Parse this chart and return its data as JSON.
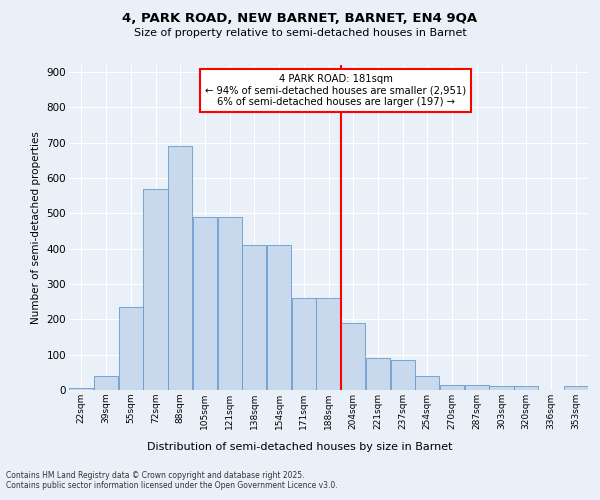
{
  "title1": "4, PARK ROAD, NEW BARNET, BARNET, EN4 9QA",
  "title2": "Size of property relative to semi-detached houses in Barnet",
  "xlabel": "Distribution of semi-detached houses by size in Barnet",
  "ylabel": "Number of semi-detached properties",
  "bin_labels": [
    "22sqm",
    "39sqm",
    "55sqm",
    "72sqm",
    "88sqm",
    "105sqm",
    "121sqm",
    "138sqm",
    "154sqm",
    "171sqm",
    "188sqm",
    "204sqm",
    "221sqm",
    "237sqm",
    "254sqm",
    "270sqm",
    "287sqm",
    "303sqm",
    "320sqm",
    "336sqm",
    "353sqm"
  ],
  "bar_heights": [
    5,
    40,
    235,
    570,
    690,
    490,
    490,
    410,
    410,
    260,
    260,
    190,
    90,
    85,
    40,
    15,
    15,
    10,
    10,
    0,
    10
  ],
  "bar_color": "#c9d9ed",
  "bar_edge_color": "#6699cc",
  "vline_x": 10.5,
  "vline_color": "red",
  "annotation_text": "4 PARK ROAD: 181sqm\n← 94% of semi-detached houses are smaller (2,951)\n6% of semi-detached houses are larger (197) →",
  "annotation_box_color": "white",
  "annotation_box_edge": "red",
  "footer": "Contains HM Land Registry data © Crown copyright and database right 2025.\nContains public sector information licensed under the Open Government Licence v3.0.",
  "ylim": [
    0,
    920
  ],
  "yticks": [
    0,
    100,
    200,
    300,
    400,
    500,
    600,
    700,
    800,
    900
  ],
  "background_color": "#eaf0f8",
  "plot_background": "#eaf0f8"
}
